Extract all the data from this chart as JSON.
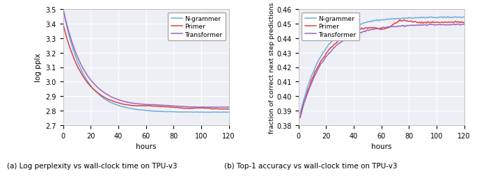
{
  "left": {
    "title": "(a) Log perplexity vs wall-clock time on TPU-v3",
    "xlabel": "hours",
    "ylabel": "log pplx",
    "xlim": [
      0,
      120
    ],
    "ylim": [
      2.7,
      3.5
    ],
    "yticks": [
      2.7,
      2.8,
      2.9,
      3.0,
      3.1,
      3.2,
      3.3,
      3.4,
      3.5
    ],
    "xticks": [
      0,
      20,
      40,
      60,
      80,
      100,
      120
    ]
  },
  "right": {
    "title": "(b) Top-1 accuracy vs wall-clock time on TPU-v3",
    "xlabel": "hours",
    "ylabel": "fraction of correct next step predictions",
    "xlim": [
      0,
      120
    ],
    "ylim": [
      0.38,
      0.46
    ],
    "yticks": [
      0.38,
      0.39,
      0.4,
      0.41,
      0.42,
      0.43,
      0.44,
      0.45,
      0.46
    ],
    "xticks": [
      0,
      20,
      40,
      60,
      80,
      100,
      120
    ]
  },
  "colors": {
    "N-grammer": "#6baed6",
    "Primer": "#e04040",
    "Transformer": "#9966bb"
  },
  "background_color": "#eeeef5",
  "grid_color": "white",
  "line_width": 1.1
}
